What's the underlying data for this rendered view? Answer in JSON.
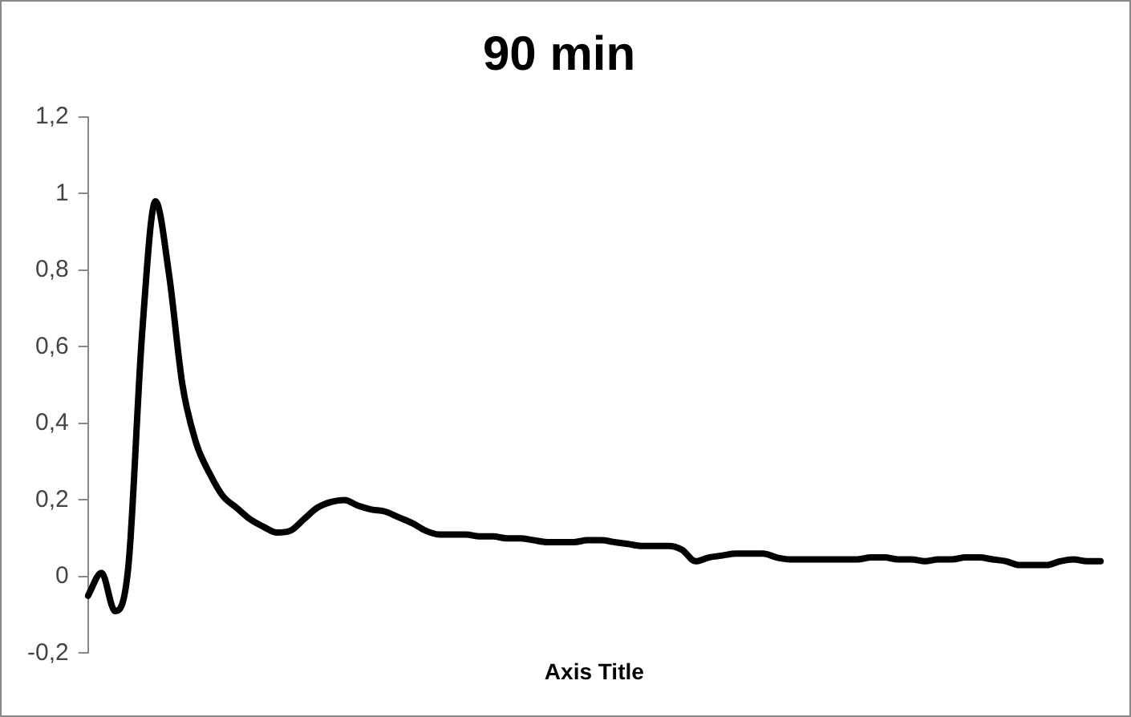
{
  "chart_data": {
    "type": "line",
    "title": "90 min",
    "xlabel": "Axis Title",
    "categories": [
      null,
      null,
      null,
      null,
      null,
      null,
      null,
      null,
      null,
      null,
      null,
      null,
      null,
      null,
      null,
      null,
      null,
      null,
      null,
      null,
      null,
      null,
      null,
      null,
      null,
      null,
      null,
      null,
      null,
      null,
      null,
      null,
      null,
      null,
      null,
      null,
      null,
      null,
      null,
      null,
      null,
      null,
      null,
      null,
      null,
      null,
      null,
      null,
      null,
      null,
      null,
      null,
      null,
      null,
      null,
      null,
      null,
      null,
      null,
      null,
      null,
      null,
      null,
      null,
      null,
      null,
      null,
      null,
      null,
      null,
      null,
      null,
      null,
      null,
      null,
      null
    ],
    "series": [
      {
        "color": "#000000",
        "values": [
          -0.05,
          0.01,
          -0.09,
          0.03,
          0.63,
          0.98,
          0.79,
          0.5,
          0.35,
          0.27,
          0.21,
          0.18,
          0.15,
          0.13,
          0.115,
          0.12,
          0.15,
          0.18,
          0.195,
          0.2,
          0.185,
          0.175,
          0.17,
          0.155,
          0.14,
          0.12,
          0.11,
          0.11,
          0.11,
          0.105,
          0.105,
          0.1,
          0.1,
          0.095,
          0.09,
          0.09,
          0.09,
          0.095,
          0.095,
          0.09,
          0.085,
          0.08,
          0.08,
          0.08,
          0.07,
          0.04,
          0.05,
          0.055,
          0.06,
          0.06,
          0.06,
          0.05,
          0.045,
          0.045,
          0.045,
          0.045,
          0.045,
          0.045,
          0.05,
          0.05,
          0.045,
          0.045,
          0.04,
          0.045,
          0.045,
          0.05,
          0.05,
          0.045,
          0.04,
          0.03,
          0.03,
          0.03,
          0.04,
          0.045,
          0.04,
          0.04
        ]
      }
    ],
    "ylim": [
      -0.2,
      1.2
    ],
    "yticks": [
      {
        "value": -0.2,
        "label": "-0,2"
      },
      {
        "value": 0,
        "label": "0"
      },
      {
        "value": 0.2,
        "label": "0,2"
      },
      {
        "value": 0.4,
        "label": "0,4"
      },
      {
        "value": 0.6,
        "label": "0,6"
      },
      {
        "value": 0.8,
        "label": "0,8"
      },
      {
        "value": 1,
        "label": "1"
      },
      {
        "value": 1.2,
        "label": "1,2"
      }
    ],
    "tick_labels": "y",
    "grid": false,
    "legend": false,
    "marker": "none",
    "line_style": "solid"
  }
}
